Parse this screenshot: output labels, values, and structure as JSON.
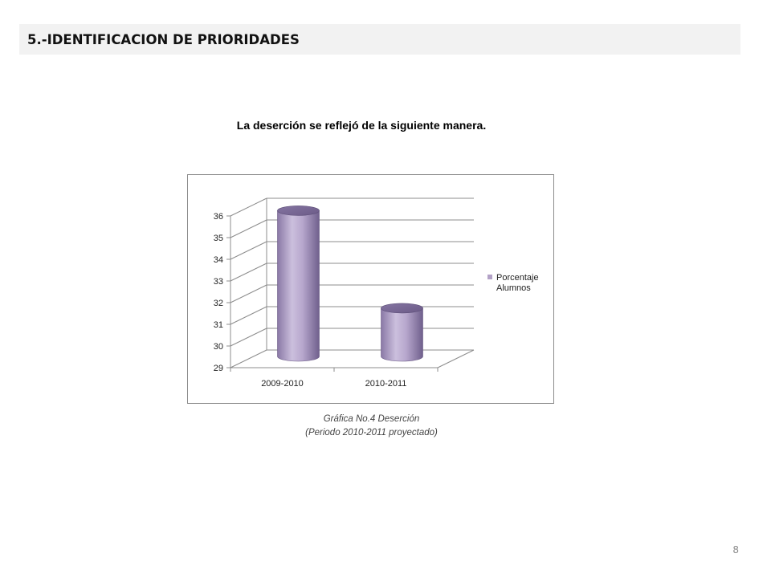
{
  "header": {
    "title": "5.-IDENTIFICACION DE PRIORIDADES"
  },
  "intro_text": "La deserción se reflejó de la siguiente manera.",
  "caption": {
    "line1": "Gráfica No.4 Deserción",
    "line2": "(Periodo 2010-2011 proyectado)"
  },
  "page_number": "8",
  "chart_data": {
    "type": "bar",
    "style": "3d-cylinder",
    "categories": [
      "2009-2010",
      "2010-2011"
    ],
    "series": [
      {
        "name": "Porcentaje Alumnos",
        "values": [
          35.8,
          31.3
        ],
        "color": "#b3a2c7"
      }
    ],
    "ylim": [
      29,
      36
    ],
    "yticks": [
      "29",
      "30",
      "31",
      "32",
      "33",
      "34",
      "35",
      "36"
    ],
    "grid": true,
    "legend": {
      "position": "right",
      "entries": [
        "Porcentaje",
        "Alumnos"
      ]
    }
  }
}
